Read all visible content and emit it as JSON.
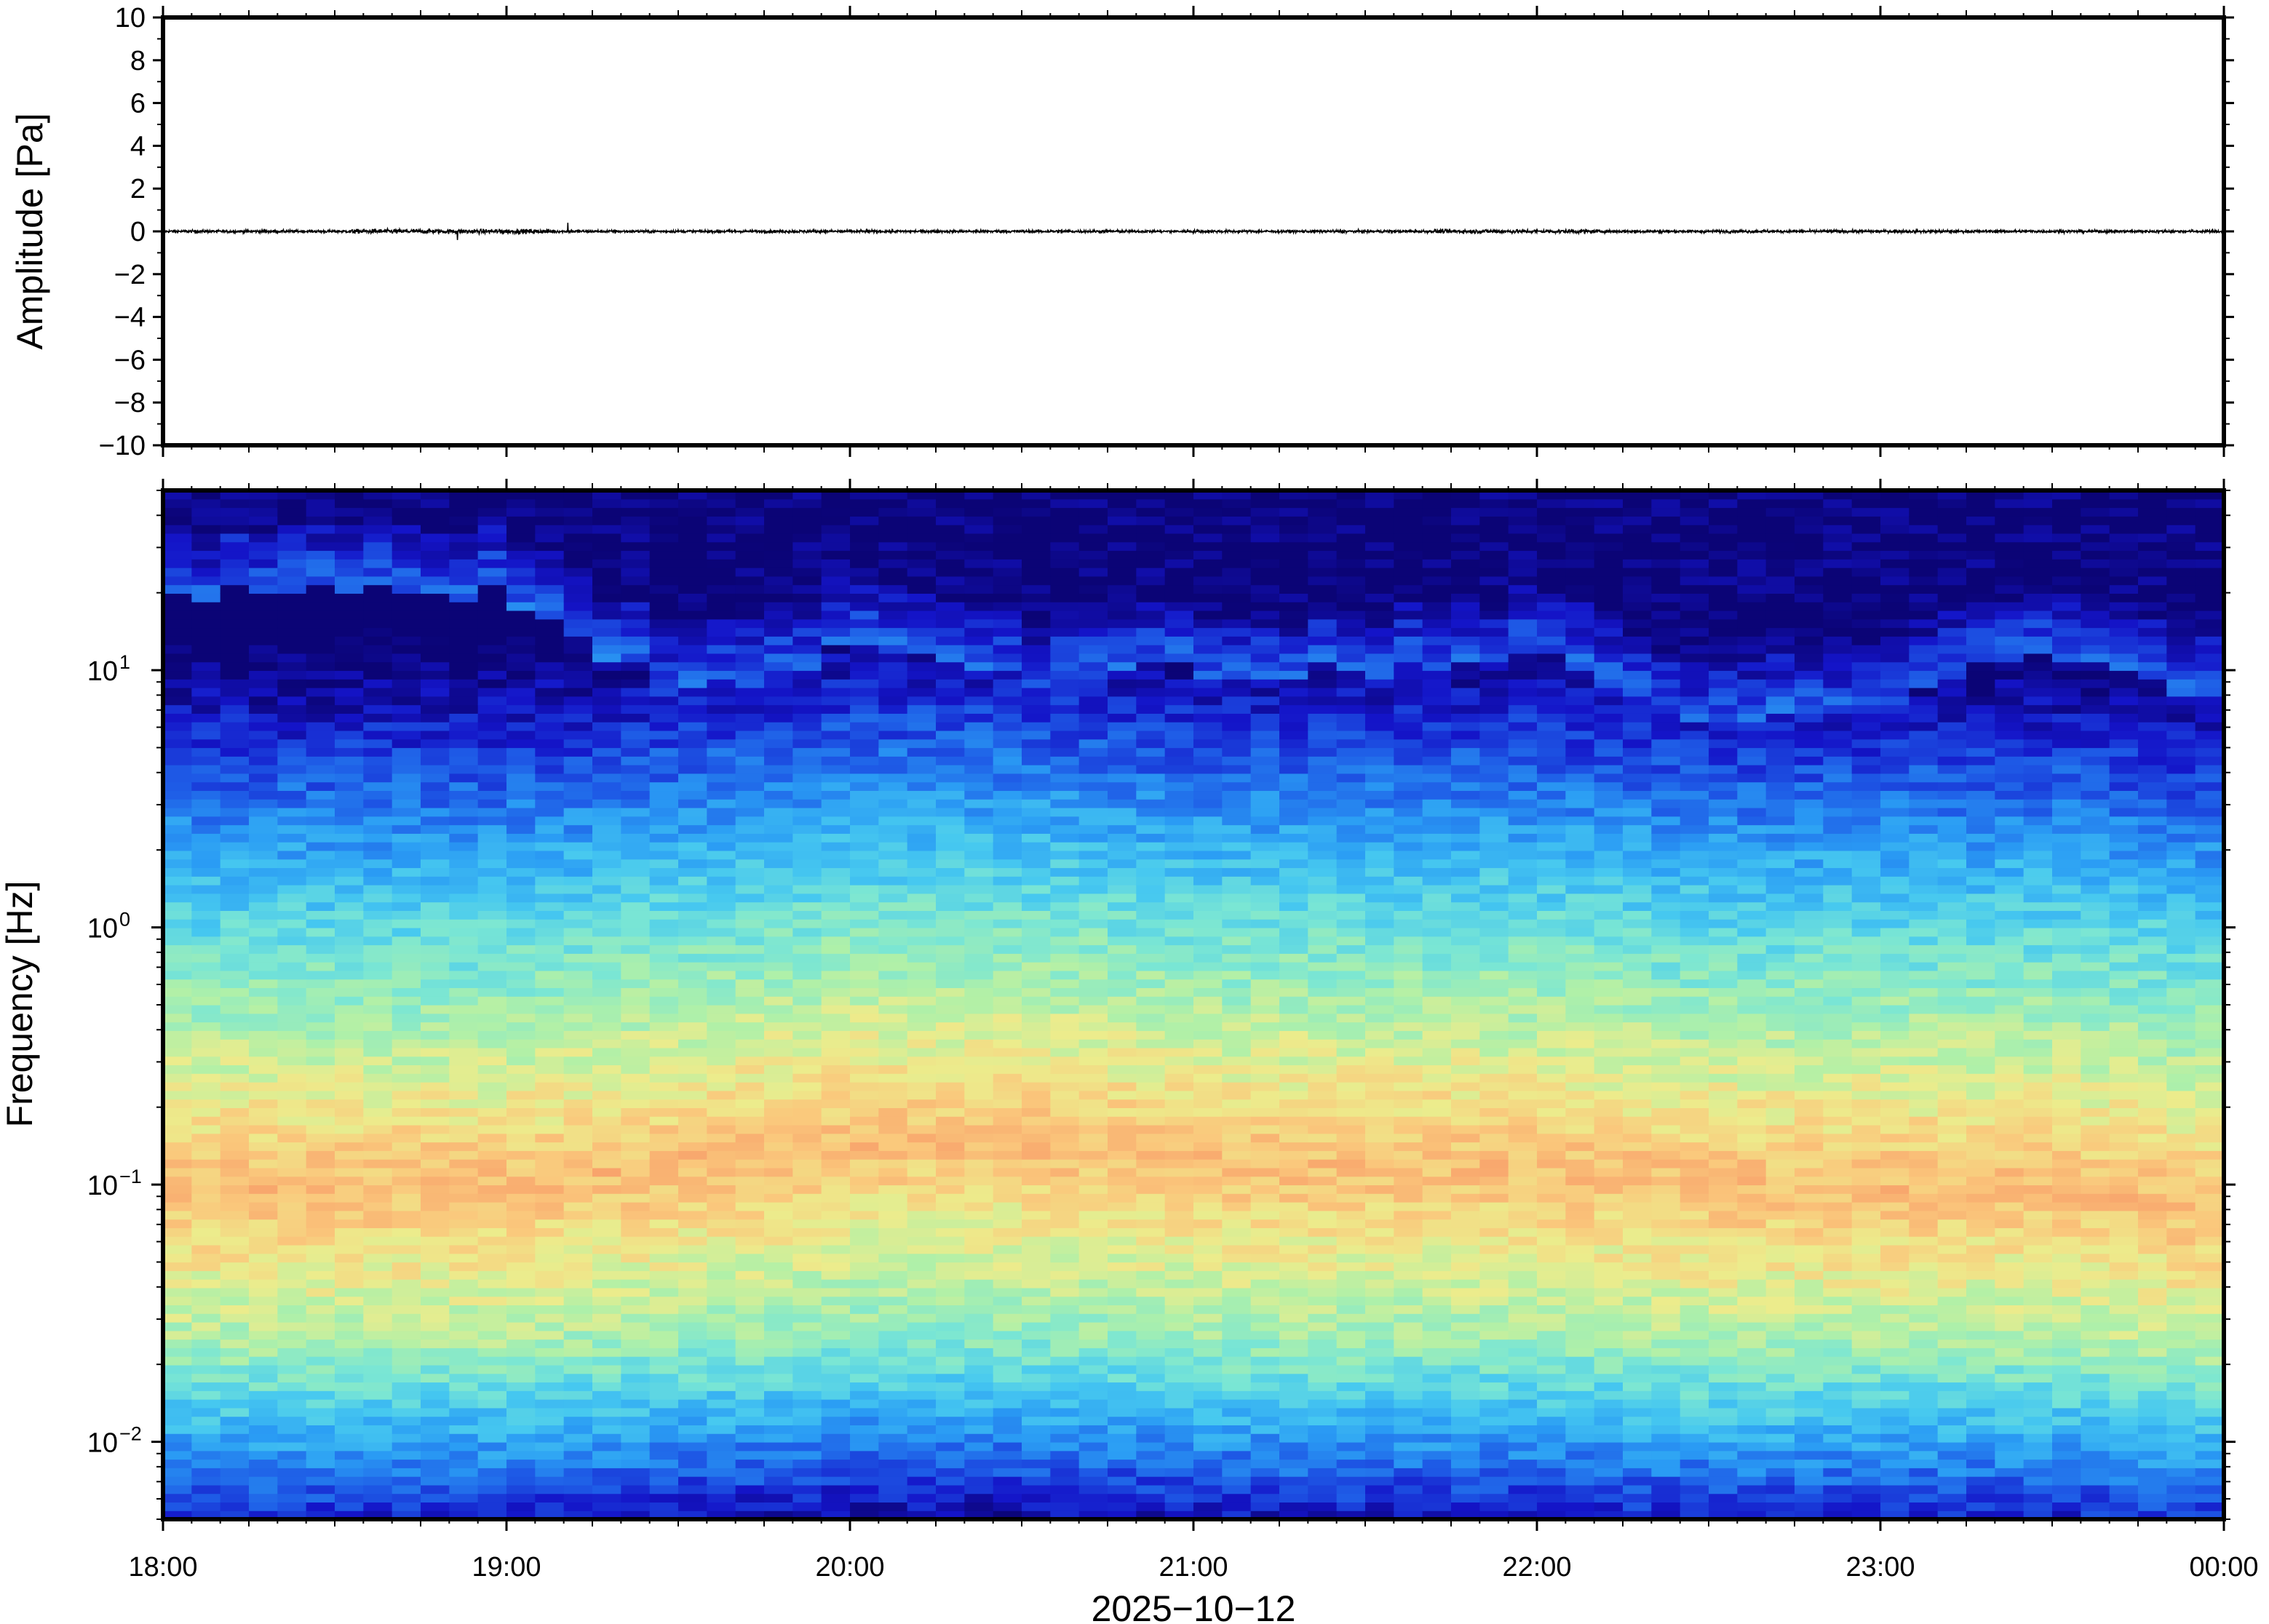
{
  "chart_data": [
    {
      "type": "line",
      "title": "",
      "ylabel": "Amplitude [Pa]",
      "ylim": [
        -10,
        10
      ],
      "yticks": [
        10,
        8,
        6,
        4,
        2,
        0,
        -2,
        -4,
        -6,
        -8,
        -10
      ],
      "ytick_labels": [
        "10",
        "8",
        "6",
        "4",
        "2",
        "0",
        "−2",
        "−4",
        "−6",
        "−8",
        "−10"
      ],
      "x_range": [
        "2025-10-12T18:00",
        "2025-10-13T00:00"
      ],
      "series": [
        {
          "color": "#000000",
          "description_values": {
            "baseline": 0,
            "typical_peak_amplitude": 0.2,
            "max_amplitude": 0.4
          }
        }
      ],
      "grid": false
    },
    {
      "type": "heatmap",
      "ylabel": "Frequency [Hz]",
      "y_scale": "log",
      "ylim": [
        0.005,
        50
      ],
      "yticks": [
        10,
        1,
        0.1,
        0.01
      ],
      "ytick_labels": [
        {
          "base": "10",
          "exp": "1"
        },
        {
          "base": "10",
          "exp": "0"
        },
        {
          "base": "10",
          "exp": "−1"
        },
        {
          "base": "10",
          "exp": "−2"
        }
      ],
      "xlabel": "2025−10−12",
      "x_range": [
        "2025-10-12T18:00",
        "2025-10-13T00:00"
      ],
      "xticks": [
        "18:00",
        "19:00",
        "20:00",
        "21:00",
        "22:00",
        "23:00",
        "00:00"
      ],
      "colormap": [
        "#0b0476",
        "#1414c8",
        "#1e5ae6",
        "#2a9cf4",
        "#46c8f0",
        "#7ae6d4",
        "#b0f0a8",
        "#ecec8c",
        "#fac87c",
        "#f8a06a"
      ],
      "power_profile_by_hour": [
        {
          "time": "18:00",
          "cutoff_hz": 20,
          "peak_hz": 0.1
        },
        {
          "time": "19:00",
          "cutoff_hz": 20,
          "peak_hz": 0.1
        },
        {
          "time": "19:30",
          "cutoff_hz": 8,
          "peak_hz": 0.12
        },
        {
          "time": "20:00",
          "cutoff_hz": 12,
          "peak_hz": 0.15
        },
        {
          "time": "20:30",
          "cutoff_hz": 9,
          "peak_hz": 0.15
        },
        {
          "time": "21:00",
          "cutoff_hz": 10,
          "peak_hz": 0.12
        },
        {
          "time": "21:30",
          "cutoff_hz": 10,
          "peak_hz": 0.12
        },
        {
          "time": "22:00",
          "cutoff_hz": 12,
          "peak_hz": 0.12
        },
        {
          "time": "22:30",
          "cutoff_hz": 6,
          "peak_hz": 0.1
        },
        {
          "time": "23:00",
          "cutoff_hz": 7,
          "peak_hz": 0.1
        },
        {
          "time": "23:30",
          "cutoff_hz": 12,
          "peak_hz": 0.1
        },
        {
          "time": "00:00",
          "cutoff_hz": 8,
          "peak_hz": 0.08
        }
      ],
      "grid": false
    }
  ]
}
